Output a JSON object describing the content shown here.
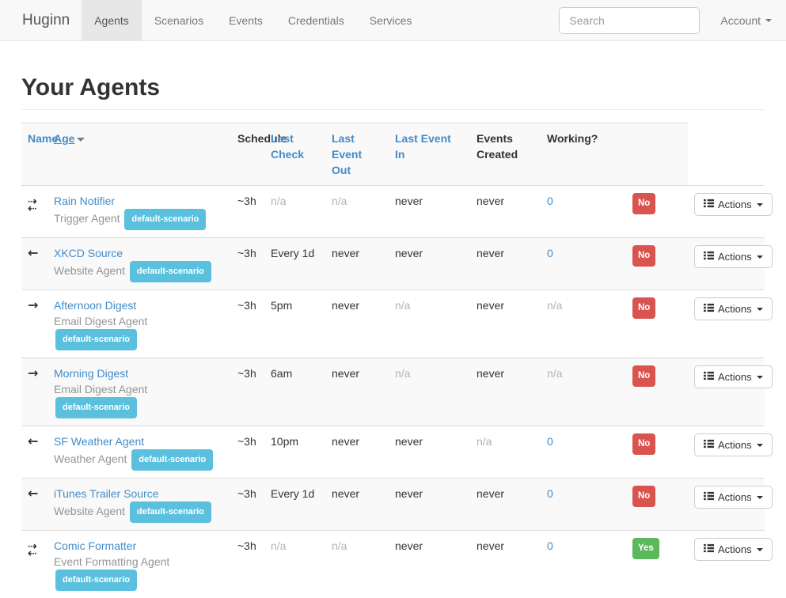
{
  "navbar": {
    "brand": "Huginn",
    "items": [
      {
        "label": "Agents",
        "active": true
      },
      {
        "label": "Scenarios",
        "active": false
      },
      {
        "label": "Events",
        "active": false
      },
      {
        "label": "Credentials",
        "active": false
      },
      {
        "label": "Services",
        "active": false
      }
    ],
    "search_placeholder": "Search",
    "account_label": "Account"
  },
  "page": {
    "title": "Your Agents"
  },
  "table": {
    "headers": [
      {
        "label": "Name",
        "link": true,
        "sorted": false
      },
      {
        "label": "Age",
        "link": true,
        "sorted": true
      },
      {
        "label": "Schedule",
        "link": false,
        "sorted": false
      },
      {
        "label": "Last Check",
        "link": true,
        "sorted": false
      },
      {
        "label": "Last Event Out",
        "link": true,
        "sorted": false
      },
      {
        "label": "Last Event In",
        "link": true,
        "sorted": false
      },
      {
        "label": "Events Created",
        "link": false,
        "sorted": false
      },
      {
        "label": "Working?",
        "link": false,
        "sorted": false
      }
    ],
    "actions_label": "Actions",
    "rows": [
      {
        "direction": "both",
        "name": "Rain Notifier",
        "type": "Trigger Agent",
        "scenario": "default-scenario",
        "age": "~3h",
        "schedule": "n/a",
        "last_check": "n/a",
        "last_event_out": "never",
        "last_event_in": "never",
        "events_created": "0",
        "working": "No"
      },
      {
        "direction": "left",
        "name": "XKCD Source",
        "type": "Website Agent",
        "scenario": "default-scenario",
        "age": "~3h",
        "schedule": "Every 1d",
        "last_check": "never",
        "last_event_out": "never",
        "last_event_in": "never",
        "events_created": "0",
        "working": "No"
      },
      {
        "direction": "right",
        "name": "Afternoon Digest",
        "type": "Email Digest Agent",
        "scenario": "default-scenario",
        "age": "~3h",
        "schedule": "5pm",
        "last_check": "never",
        "last_event_out": "n/a",
        "last_event_in": "never",
        "events_created": "n/a",
        "working": "No"
      },
      {
        "direction": "right",
        "name": "Morning Digest",
        "type": "Email Digest Agent",
        "scenario": "default-scenario",
        "age": "~3h",
        "schedule": "6am",
        "last_check": "never",
        "last_event_out": "n/a",
        "last_event_in": "never",
        "events_created": "n/a",
        "working": "No"
      },
      {
        "direction": "left",
        "name": "SF Weather Agent",
        "type": "Weather Agent",
        "scenario": "default-scenario",
        "age": "~3h",
        "schedule": "10pm",
        "last_check": "never",
        "last_event_out": "never",
        "last_event_in": "n/a",
        "events_created": "0",
        "working": "No"
      },
      {
        "direction": "left",
        "name": "iTunes Trailer Source",
        "type": "Website Agent",
        "scenario": "default-scenario",
        "age": "~3h",
        "schedule": "Every 1d",
        "last_check": "never",
        "last_event_out": "never",
        "last_event_in": "never",
        "events_created": "0",
        "working": "No"
      },
      {
        "direction": "both",
        "name": "Comic Formatter",
        "type": "Event Formatting Agent",
        "scenario": "default-scenario",
        "age": "~3h",
        "schedule": "n/a",
        "last_check": "n/a",
        "last_event_out": "never",
        "last_event_in": "never",
        "events_created": "0",
        "working": "Yes"
      }
    ],
    "icons": {
      "dir_right_dashed": "⇢",
      "dir_left_dashed": "⇠",
      "dir_left": "←",
      "dir_right": "→"
    },
    "colors": {
      "link": "#428bca",
      "scenario_badge": "#5bc0de",
      "working_no": "#d9534f",
      "working_yes": "#5cb85c",
      "muted": "#b3b3b3"
    }
  }
}
